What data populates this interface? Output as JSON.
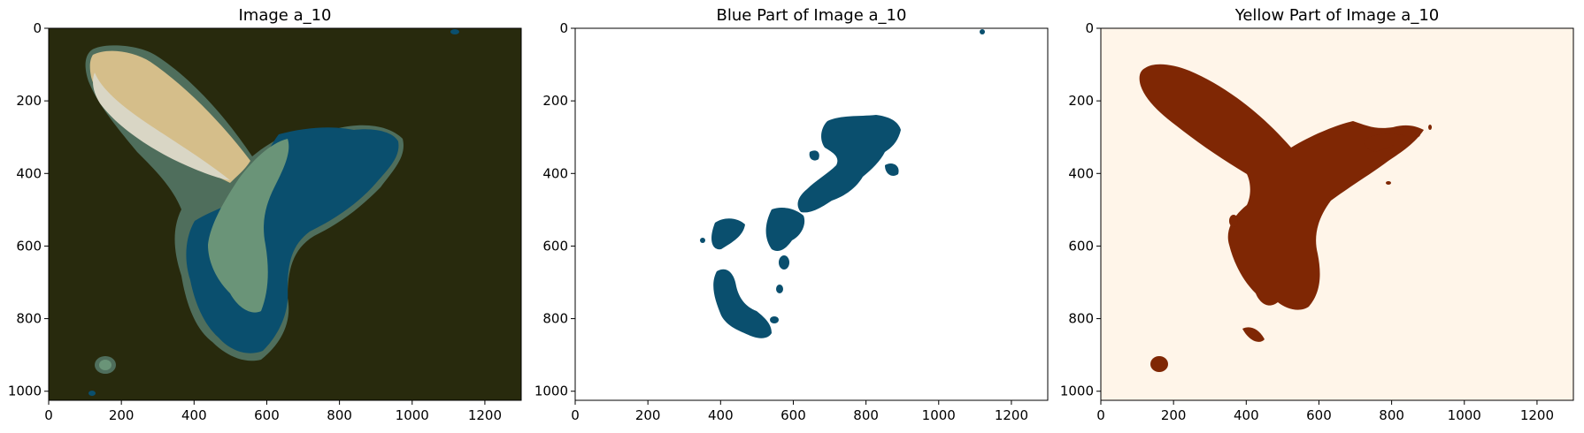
{
  "chart_data": [
    {
      "type": "heatmap",
      "title": "Image a_10",
      "x_ticks": [
        0,
        200,
        400,
        600,
        800,
        1000,
        1200
      ],
      "y_ticks": [
        0,
        200,
        400,
        600,
        800,
        1000
      ],
      "xlim": [
        0,
        1300
      ],
      "ylim": [
        1025,
        0
      ],
      "colors": {
        "background": "#282a0d",
        "blue": "#0a4f6e",
        "green": "#6a9478",
        "beige": "#d5be8a",
        "light": "#d9d6c5",
        "mid": "#4f6e5c"
      }
    },
    {
      "type": "heatmap",
      "title": "Blue Part of Image a_10",
      "x_ticks": [
        0,
        200,
        400,
        600,
        800,
        1000,
        1200
      ],
      "y_ticks": [
        0,
        200,
        400,
        600,
        800,
        1000
      ],
      "xlim": [
        0,
        1300
      ],
      "ylim": [
        1025,
        0
      ],
      "colors": {
        "background": "#ffffff",
        "mask": "#0a4f6e"
      }
    },
    {
      "type": "heatmap",
      "title": "Yellow Part of Image a_10",
      "x_ticks": [
        0,
        200,
        400,
        600,
        800,
        1000,
        1200
      ],
      "y_ticks": [
        0,
        200,
        400,
        600,
        800,
        1000
      ],
      "xlim": [
        0,
        1300
      ],
      "ylim": [
        1025,
        0
      ],
      "colors": {
        "background": "#fff5e9",
        "mask": "#7f2704"
      }
    }
  ]
}
